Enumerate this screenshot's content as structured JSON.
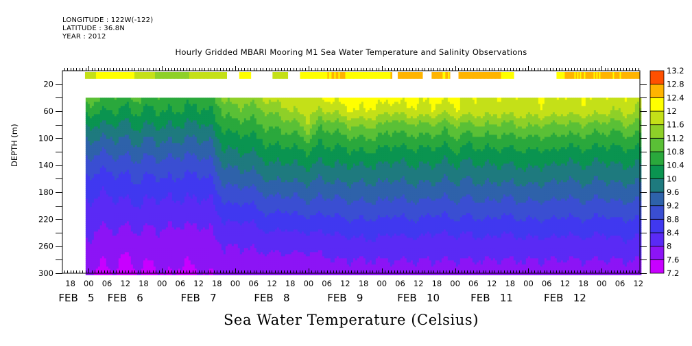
{
  "header": {
    "longitude": "LONGITUDE : 122W(-122)",
    "latitude": "LATITUDE : 36.8N",
    "year": "YEAR : 2012"
  },
  "chart_data": {
    "type": "heatmap",
    "title": "Hourly Gridded MBARI Mooring M1 Sea Water Temperature and Salinity Observations",
    "caption": "Sea Water Temperature (Celsius)",
    "xlabel": "",
    "ylabel": "DEPTH (m)",
    "x_units": "hours since FEB 5 00:00 2012",
    "xlim": [
      -8.6,
      180.5
    ],
    "ylim": [
      300,
      0
    ],
    "y_inverted": true,
    "y_ticks": [
      20,
      40,
      60,
      80,
      100,
      120,
      140,
      160,
      180,
      200,
      220,
      240,
      260,
      280,
      300
    ],
    "y_tick_labels": [
      "20",
      "60",
      "100",
      "140",
      "180",
      "220",
      "260",
      "300"
    ],
    "y_tick_label_values": [
      20,
      60,
      100,
      140,
      180,
      220,
      260,
      300
    ],
    "x_tick_labels": [
      {
        "hour": -6,
        "label": "18"
      },
      {
        "hour": 0,
        "label": "00"
      },
      {
        "hour": 6,
        "label": "06"
      },
      {
        "hour": 12,
        "label": "12"
      },
      {
        "hour": 18,
        "label": "18"
      },
      {
        "hour": 24,
        "label": "00"
      },
      {
        "hour": 30,
        "label": "06"
      },
      {
        "hour": 36,
        "label": "12"
      },
      {
        "hour": 42,
        "label": "18"
      },
      {
        "hour": 48,
        "label": "00"
      },
      {
        "hour": 54,
        "label": "06"
      },
      {
        "hour": 60,
        "label": "12"
      },
      {
        "hour": 66,
        "label": "18"
      },
      {
        "hour": 72,
        "label": "00"
      },
      {
        "hour": 78,
        "label": "06"
      },
      {
        "hour": 84,
        "label": "12"
      },
      {
        "hour": 90,
        "label": "18"
      },
      {
        "hour": 96,
        "label": "00"
      },
      {
        "hour": 102,
        "label": "06"
      },
      {
        "hour": 108,
        "label": "12"
      },
      {
        "hour": 114,
        "label": "18"
      },
      {
        "hour": 120,
        "label": "00"
      },
      {
        "hour": 126,
        "label": "06"
      },
      {
        "hour": 132,
        "label": "12"
      },
      {
        "hour": 138,
        "label": "18"
      },
      {
        "hour": 144,
        "label": "00"
      },
      {
        "hour": 150,
        "label": "06"
      },
      {
        "hour": 156,
        "label": "12"
      },
      {
        "hour": 162,
        "label": "18"
      },
      {
        "hour": 168,
        "label": "00"
      },
      {
        "hour": 174,
        "label": "06"
      },
      {
        "hour": 180,
        "label": "12"
      }
    ],
    "day_labels": [
      {
        "hour": -4,
        "label": "FEB  5"
      },
      {
        "hour": 12,
        "label": "FEB  6"
      },
      {
        "hour": 36,
        "label": "FEB  7"
      },
      {
        "hour": 60,
        "label": "FEB  8"
      },
      {
        "hour": 84,
        "label": "FEB  9"
      },
      {
        "hour": 108,
        "label": "FEB 10"
      },
      {
        "hour": 132,
        "label": "FEB 11"
      },
      {
        "hour": 156,
        "label": "FEB 12"
      }
    ],
    "colorbar": {
      "levels": [
        7.2,
        7.6,
        8.0,
        8.4,
        8.8,
        9.2,
        9.6,
        10.0,
        10.4,
        10.8,
        11.2,
        11.6,
        12.0,
        12.4,
        12.8,
        13.2
      ],
      "level_labels": [
        "7.2",
        "7.6",
        "8",
        "8.4",
        "8.8",
        "9.2",
        "9.6",
        "10",
        "10.4",
        "10.8",
        "11.2",
        "11.6",
        "12",
        "12.4",
        "12.8",
        "13.2"
      ],
      "colors": [
        "#cc00ff",
        "#8a14ff",
        "#6a28ff",
        "#4632ff",
        "#3c46d6",
        "#3255c0",
        "#2d64a0",
        "#1e7a82",
        "#0a8c50",
        "#0a9a48",
        "#2ea83c",
        "#50b836",
        "#78c828",
        "#a0d41a",
        "#c8e010",
        "#eef000",
        "#ffff00",
        "#ffd700",
        "#ffb400",
        "#ff9000",
        "#ff7000",
        "#ff5000",
        "#ff3000",
        "#ff0000",
        "#dc0000",
        "#b40000",
        "#960000"
      ],
      "band_colors": [
        "#c800ff",
        "#8c14f5",
        "#5a2af5",
        "#4038f0",
        "#3a4ed2",
        "#2e62aa",
        "#1e7a7e",
        "#0a9450",
        "#2aa83c",
        "#5ac036",
        "#8ed028",
        "#c4e018",
        "#ffff00",
        "#ffb400",
        "#ff5000"
      ],
      "band_colors_full": {
        "7.2": "#c800ff",
        "7.6": "#8c14f5",
        "8.0": "#5028f0",
        "8.4": "#4038e6",
        "8.8": "#2e5ab4",
        "9.2": "#1a7878",
        "9.6": "#0a9650",
        "10.0": "#38b040",
        "10.4": "#6cc432",
        "10.8": "#b8dc1c",
        "11.2": "#ffff00",
        "11.6": "#ffb400",
        "12.0": "#ff5a00",
        "12.4": "#ff1400",
        "12.8": "#c80000"
      }
    },
    "surface_depth_range_m": [
      2,
      10
    ],
    "surface_segments_hours": [
      [
        -1.2,
        45.3
      ],
      [
        49.3,
        53.2
      ],
      [
        60.2,
        65.3
      ],
      [
        69.2,
        99.4
      ],
      [
        101.2,
        109.4
      ],
      [
        112.3,
        118.4
      ],
      [
        121.1,
        139.3
      ],
      [
        153.2,
        180.5
      ]
    ],
    "surface_temperature": {
      "hours": [
        -1,
        6,
        12,
        18,
        24,
        30,
        36,
        42,
        48,
        54,
        60,
        66,
        72,
        78,
        84,
        90,
        96,
        102,
        108,
        114,
        120,
        126,
        132,
        138,
        156,
        180
      ],
      "values": [
        11.9,
        12.1,
        12.1,
        11.9,
        11.4,
        11.5,
        11.7,
        11.8,
        12.0,
        12.1,
        11.9,
        12.0,
        12.3,
        12.4,
        12.4,
        12.3,
        12.3,
        12.5,
        12.6,
        12.4,
        12.4,
        12.5,
        12.5,
        12.3,
        12.4,
        12.4
      ]
    },
    "profile_start_depth_m": 40,
    "profile_hours": [
      -1,
      4,
      8,
      12,
      16,
      20,
      24,
      28,
      32,
      36,
      40,
      44,
      48,
      52,
      56,
      60,
      64,
      68,
      72,
      76,
      80,
      84,
      88,
      92,
      96,
      100,
      104,
      108,
      112,
      116,
      120,
      124,
      128,
      132,
      136,
      140,
      144,
      148,
      152,
      156,
      160,
      164,
      168,
      172,
      176,
      180.5
    ],
    "profile_depths": [
      40,
      60,
      80,
      100,
      120,
      140,
      160,
      180,
      200,
      220,
      240,
      260,
      280,
      300
    ],
    "temperature": [
      [
        11.1,
        10.6,
        10.1,
        9.7,
        9.4,
        9.1,
        8.8,
        8.6,
        8.4,
        8.3,
        8.1,
        8.0,
        7.8,
        7.7
      ],
      [
        10.8,
        10.4,
        10.0,
        9.6,
        9.2,
        8.9,
        8.6,
        8.4,
        8.2,
        8.1,
        7.9,
        7.8,
        7.6,
        7.5
      ],
      [
        10.7,
        10.4,
        10.0,
        9.6,
        9.3,
        9.0,
        8.7,
        8.5,
        8.3,
        8.1,
        8.0,
        7.8,
        7.7,
        7.6
      ],
      [
        10.6,
        10.3,
        9.9,
        9.6,
        9.3,
        9.0,
        8.7,
        8.5,
        8.3,
        8.1,
        7.9,
        7.7,
        7.5,
        7.4
      ],
      [
        10.9,
        10.5,
        10.1,
        9.8,
        9.4,
        9.1,
        8.9,
        8.6,
        8.4,
        8.2,
        8.0,
        7.9,
        7.7,
        7.6
      ],
      [
        10.6,
        10.3,
        10.0,
        9.6,
        9.3,
        9.0,
        8.7,
        8.5,
        8.3,
        8.1,
        7.9,
        7.8,
        7.6,
        7.5
      ],
      [
        10.7,
        10.4,
        10.1,
        9.7,
        9.4,
        9.1,
        8.8,
        8.5,
        8.3,
        8.1,
        8.0,
        7.9,
        7.7,
        7.6
      ],
      [
        10.7,
        10.4,
        10.0,
        9.7,
        9.3,
        9.0,
        8.8,
        8.5,
        8.3,
        8.1,
        7.9,
        7.8,
        7.7,
        7.6
      ],
      [
        10.6,
        10.3,
        10.0,
        9.6,
        9.3,
        9.0,
        8.7,
        8.5,
        8.3,
        8.1,
        7.9,
        7.8,
        7.6,
        7.5
      ],
      [
        10.6,
        10.3,
        9.9,
        9.6,
        9.3,
        9.0,
        8.7,
        8.5,
        8.3,
        8.1,
        7.9,
        7.8,
        7.7,
        7.6
      ],
      [
        10.7,
        10.4,
        10.1,
        9.7,
        9.4,
        9.1,
        8.8,
        8.5,
        8.3,
        8.1,
        8.0,
        7.8,
        7.7,
        7.6
      ],
      [
        11.2,
        10.8,
        10.5,
        10.2,
        9.9,
        9.6,
        9.3,
        9.0,
        8.7,
        8.4,
        8.2,
        8.0,
        7.9,
        7.8
      ],
      [
        11.5,
        11.1,
        10.7,
        10.3,
        10.0,
        9.7,
        9.4,
        9.1,
        8.8,
        8.5,
        8.2,
        8.0,
        7.9,
        7.8
      ],
      [
        11.3,
        11.0,
        10.6,
        10.3,
        10.0,
        9.7,
        9.4,
        9.0,
        8.7,
        8.4,
        8.2,
        8.0,
        7.9,
        7.8
      ],
      [
        11.6,
        11.1,
        10.8,
        10.4,
        10.1,
        9.8,
        9.5,
        9.2,
        8.9,
        8.6,
        8.3,
        8.1,
        7.9,
        7.8
      ],
      [
        11.8,
        11.3,
        10.9,
        10.6,
        10.3,
        10.0,
        9.7,
        9.3,
        9.0,
        8.7,
        8.4,
        8.1,
        7.9,
        7.8
      ],
      [
        11.8,
        11.4,
        11.0,
        10.6,
        10.2,
        9.9,
        9.6,
        9.3,
        8.9,
        8.6,
        8.3,
        8.1,
        7.9,
        7.8
      ],
      [
        11.9,
        11.7,
        11.1,
        10.7,
        10.3,
        10.0,
        9.7,
        9.3,
        9.0,
        8.7,
        8.4,
        8.1,
        7.9,
        7.8
      ],
      [
        11.8,
        11.7,
        11.5,
        10.9,
        10.4,
        10.1,
        9.7,
        9.4,
        9.1,
        8.7,
        8.4,
        8.1,
        7.9,
        7.8
      ],
      [
        12.0,
        11.6,
        10.9,
        10.5,
        10.2,
        9.9,
        9.6,
        9.3,
        9.0,
        8.7,
        8.4,
        8.1,
        7.9,
        7.8
      ],
      [
        12.1,
        11.6,
        11.0,
        10.6,
        10.3,
        10.0,
        9.7,
        9.3,
        9.0,
        8.7,
        8.4,
        8.2,
        8.0,
        7.9
      ],
      [
        12.2,
        11.9,
        11.2,
        10.7,
        10.3,
        10.0,
        9.7,
        9.4,
        9.1,
        8.8,
        8.5,
        8.2,
        8.0,
        7.9
      ],
      [
        12.3,
        12.0,
        11.3,
        10.8,
        10.4,
        10.0,
        9.7,
        9.4,
        9.1,
        8.8,
        8.5,
        8.2,
        8.0,
        7.9
      ],
      [
        12.2,
        11.9,
        11.3,
        10.8,
        10.4,
        10.0,
        9.7,
        9.4,
        9.1,
        8.8,
        8.5,
        8.3,
        8.0,
        7.9
      ],
      [
        12.2,
        11.8,
        11.2,
        10.7,
        10.3,
        10.0,
        9.7,
        9.4,
        9.1,
        8.8,
        8.5,
        8.2,
        8.0,
        7.9
      ],
      [
        12.1,
        11.6,
        10.9,
        10.6,
        10.2,
        9.9,
        9.6,
        9.3,
        9.0,
        8.7,
        8.4,
        8.2,
        8.0,
        7.9
      ],
      [
        12.2,
        11.9,
        11.2,
        10.7,
        10.3,
        10.0,
        9.7,
        9.4,
        9.1,
        8.8,
        8.5,
        8.2,
        8.0,
        7.9
      ],
      [
        12.1,
        11.8,
        11.1,
        10.7,
        10.3,
        10.0,
        9.7,
        9.4,
        9.1,
        8.8,
        8.5,
        8.2,
        8.0,
        7.9
      ],
      [
        12.1,
        11.9,
        11.2,
        10.7,
        10.3,
        10.0,
        9.7,
        9.4,
        9.0,
        8.7,
        8.4,
        8.2,
        8.0,
        7.9
      ],
      [
        12.1,
        11.7,
        11.0,
        10.6,
        10.2,
        9.9,
        9.6,
        9.3,
        9.0,
        8.7,
        8.4,
        8.2,
        8.0,
        7.9
      ],
      [
        12.1,
        11.9,
        11.2,
        10.8,
        10.4,
        10.0,
        9.7,
        9.4,
        9.1,
        8.8,
        8.5,
        8.2,
        8.0,
        7.9
      ],
      [
        12.0,
        11.8,
        11.1,
        10.6,
        10.2,
        9.9,
        9.6,
        9.3,
        9.0,
        8.7,
        8.4,
        8.2,
        8.0,
        7.8
      ],
      [
        11.9,
        11.8,
        11.2,
        10.7,
        10.3,
        10.0,
        9.7,
        9.4,
        9.1,
        8.8,
        8.5,
        8.2,
        8.0,
        7.9
      ],
      [
        11.9,
        11.8,
        11.2,
        10.7,
        10.3,
        10.0,
        9.7,
        9.4,
        9.1,
        8.8,
        8.5,
        8.2,
        8.0,
        7.9
      ],
      [
        11.9,
        11.7,
        11.1,
        10.7,
        10.3,
        10.0,
        9.7,
        9.3,
        9.0,
        8.7,
        8.4,
        8.2,
        8.0,
        7.8
      ],
      [
        11.9,
        11.8,
        11.2,
        10.7,
        10.3,
        10.0,
        9.7,
        9.4,
        9.1,
        8.8,
        8.5,
        8.2,
        8.0,
        7.9
      ],
      [
        11.9,
        11.8,
        11.3,
        10.8,
        10.4,
        10.1,
        9.8,
        9.4,
        9.1,
        8.8,
        8.5,
        8.2,
        8.0,
        7.9
      ],
      [
        12.0,
        11.8,
        11.2,
        10.7,
        10.3,
        10.0,
        9.7,
        9.4,
        9.1,
        8.8,
        8.5,
        8.2,
        8.0,
        7.9
      ],
      [
        12.0,
        11.8,
        11.2,
        10.8,
        10.4,
        10.0,
        9.7,
        9.4,
        9.1,
        8.8,
        8.5,
        8.2,
        8.0,
        7.9
      ],
      [
        11.9,
        11.7,
        11.1,
        10.6,
        10.2,
        9.9,
        9.6,
        9.3,
        9.0,
        8.7,
        8.4,
        8.2,
        8.0,
        7.8
      ],
      [
        11.9,
        11.8,
        11.2,
        10.7,
        10.3,
        10.0,
        9.7,
        9.4,
        9.1,
        8.8,
        8.5,
        8.2,
        8.0,
        7.9
      ],
      [
        12.0,
        11.8,
        11.1,
        10.7,
        10.3,
        10.0,
        9.7,
        9.4,
        9.1,
        8.8,
        8.5,
        8.2,
        8.0,
        7.9
      ],
      [
        11.9,
        11.7,
        11.1,
        10.6,
        10.2,
        9.9,
        9.6,
        9.3,
        9.0,
        8.7,
        8.4,
        8.2,
        8.0,
        7.8
      ],
      [
        11.9,
        11.6,
        11.0,
        10.6,
        10.3,
        10.0,
        9.7,
        9.4,
        9.1,
        8.8,
        8.5,
        8.2,
        8.0,
        7.9
      ],
      [
        11.9,
        11.7,
        11.2,
        10.7,
        10.3,
        10.0,
        9.7,
        9.4,
        9.1,
        8.8,
        8.5,
        8.3,
        8.0,
        7.9
      ],
      [
        11.8,
        11.6,
        11.1,
        10.7,
        10.3,
        10.0,
        9.7,
        9.4,
        9.1,
        8.8,
        8.5,
        8.2,
        8.0,
        7.9
      ]
    ]
  }
}
